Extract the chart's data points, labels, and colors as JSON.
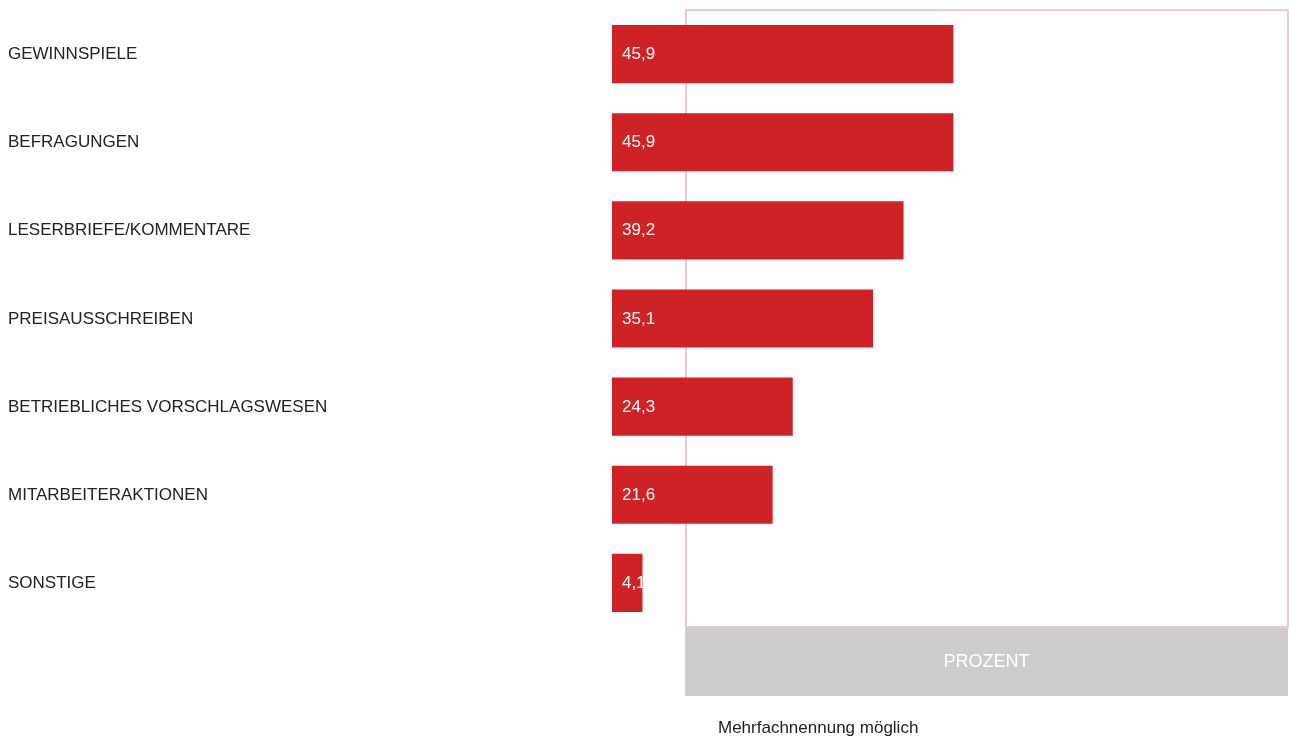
{
  "chart_data": {
    "type": "bar",
    "orientation": "horizontal",
    "categories": [
      "GEWINNSPIELE",
      "BEFRAGUNGEN",
      "LESERBRIEFE/KOMMENTARE",
      "PREISAUSSCHREIBEN",
      "BETRIEBLICHES VORSCHLAGSWESEN",
      "MITARBEITERAKTIONEN",
      "SONSTIGE"
    ],
    "values": [
      45.9,
      45.9,
      39.2,
      35.1,
      24.3,
      21.6,
      4.1
    ],
    "value_labels": [
      "45,9",
      "45,9",
      "39,2",
      "35,1",
      "24,3",
      "21,6",
      "4,1"
    ],
    "color": "#cf2226",
    "xlabel": "PROZENT",
    "annotations": [
      "Mehrfachnennung möglich"
    ]
  }
}
